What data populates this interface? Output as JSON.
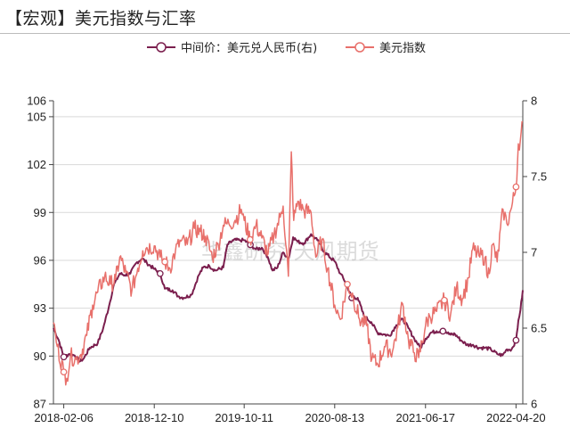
{
  "title": "【宏观】美元指数与汇率",
  "watermark": "华鑫研究 天风期货",
  "chart_data": {
    "type": "line",
    "title": "【宏观】美元指数与汇率",
    "xlabel": "",
    "x_tick_labels": [
      "2018-02-06",
      "2018-12-10",
      "2019-10-11",
      "2020-08-13",
      "2021-06-17",
      "2022-04-20"
    ],
    "x_range": [
      "2018-01-02",
      "2022-05-13"
    ],
    "y_left": {
      "ticks": [
        87,
        90,
        93,
        96,
        99,
        102,
        105,
        106
      ],
      "lim": [
        87,
        106
      ]
    },
    "y_right": {
      "ticks": [
        6,
        6.5,
        7,
        7.5,
        8
      ],
      "lim": [
        6,
        8
      ]
    },
    "legend_position": "top-center",
    "series": [
      {
        "name": "中间价：美元兑人民币(右)",
        "axis": "right",
        "color": "#7b1f4e",
        "marker": "open-circle",
        "points": [
          [
            "2018-01-02",
            6.5
          ],
          [
            "2018-01-20",
            6.42
          ],
          [
            "2018-02-06",
            6.31
          ],
          [
            "2018-02-25",
            6.33
          ],
          [
            "2018-03-15",
            6.32
          ],
          [
            "2018-04-01",
            6.28
          ],
          [
            "2018-04-15",
            6.3
          ],
          [
            "2018-05-05",
            6.37
          ],
          [
            "2018-06-01",
            6.4
          ],
          [
            "2018-06-20",
            6.5
          ],
          [
            "2018-07-10",
            6.65
          ],
          [
            "2018-07-25",
            6.78
          ],
          [
            "2018-08-15",
            6.86
          ],
          [
            "2018-09-01",
            6.85
          ],
          [
            "2018-09-20",
            6.86
          ],
          [
            "2018-10-10",
            6.93
          ],
          [
            "2018-10-30",
            6.96
          ],
          [
            "2018-11-15",
            6.93
          ],
          [
            "2018-12-10",
            6.89
          ],
          [
            "2018-12-30",
            6.86
          ],
          [
            "2019-01-15",
            6.76
          ],
          [
            "2019-02-10",
            6.75
          ],
          [
            "2019-03-01",
            6.71
          ],
          [
            "2019-03-20",
            6.7
          ],
          [
            "2019-04-15",
            6.72
          ],
          [
            "2019-05-10",
            6.85
          ],
          [
            "2019-05-25",
            6.9
          ],
          [
            "2019-06-15",
            6.91
          ],
          [
            "2019-07-05",
            6.88
          ],
          [
            "2019-08-01",
            6.9
          ],
          [
            "2019-08-15",
            7.05
          ],
          [
            "2019-09-05",
            7.08
          ],
          [
            "2019-09-25",
            7.08
          ],
          [
            "2019-10-11",
            7.08
          ],
          [
            "2019-11-01",
            7.05
          ],
          [
            "2019-11-20",
            7.02
          ],
          [
            "2019-12-10",
            7.03
          ],
          [
            "2019-12-30",
            6.97
          ],
          [
            "2020-01-15",
            6.88
          ],
          [
            "2020-02-01",
            6.9
          ],
          [
            "2020-02-20",
            7.0
          ],
          [
            "2020-03-10",
            6.96
          ],
          [
            "2020-03-25",
            7.1
          ],
          [
            "2020-04-10",
            7.07
          ],
          [
            "2020-05-01",
            7.06
          ],
          [
            "2020-05-25",
            7.12
          ],
          [
            "2020-06-15",
            7.08
          ],
          [
            "2020-07-10",
            7.0
          ],
          [
            "2020-08-13",
            6.94
          ],
          [
            "2020-09-01",
            6.86
          ],
          [
            "2020-09-20",
            6.8
          ],
          [
            "2020-10-10",
            6.7
          ],
          [
            "2020-10-30",
            6.7
          ],
          [
            "2020-11-20",
            6.58
          ],
          [
            "2020-12-15",
            6.54
          ],
          [
            "2021-01-05",
            6.47
          ],
          [
            "2021-01-25",
            6.46
          ],
          [
            "2021-02-15",
            6.45
          ],
          [
            "2021-03-10",
            6.52
          ],
          [
            "2021-04-01",
            6.56
          ],
          [
            "2021-04-20",
            6.5
          ],
          [
            "2021-05-10",
            6.43
          ],
          [
            "2021-05-31",
            6.37
          ],
          [
            "2021-06-17",
            6.43
          ],
          [
            "2021-07-05",
            6.47
          ],
          [
            "2021-07-25",
            6.48
          ],
          [
            "2021-08-15",
            6.48
          ],
          [
            "2021-09-05",
            6.46
          ],
          [
            "2021-09-25",
            6.46
          ],
          [
            "2021-10-15",
            6.42
          ],
          [
            "2021-11-05",
            6.39
          ],
          [
            "2021-11-25",
            6.39
          ],
          [
            "2021-12-15",
            6.37
          ],
          [
            "2022-01-05",
            6.37
          ],
          [
            "2022-01-25",
            6.36
          ],
          [
            "2022-02-15",
            6.33
          ],
          [
            "2022-03-05",
            6.32
          ],
          [
            "2022-03-20",
            6.36
          ],
          [
            "2022-04-05",
            6.36
          ],
          [
            "2022-04-20",
            6.42
          ],
          [
            "2022-04-28",
            6.55
          ],
          [
            "2022-05-05",
            6.62
          ],
          [
            "2022-05-13",
            6.75
          ]
        ]
      },
      {
        "name": "美元指数",
        "axis": "left",
        "color": "#e8706b",
        "marker": "open-circle",
        "points": [
          [
            "2018-01-02",
            92.1
          ],
          [
            "2018-01-15",
            90.6
          ],
          [
            "2018-02-06",
            89.0
          ],
          [
            "2018-02-16",
            88.6
          ],
          [
            "2018-03-01",
            90.0
          ],
          [
            "2018-03-20",
            89.8
          ],
          [
            "2018-04-05",
            90.1
          ],
          [
            "2018-04-25",
            91.3
          ],
          [
            "2018-05-15",
            93.2
          ],
          [
            "2018-06-01",
            94.0
          ],
          [
            "2018-06-25",
            95.0
          ],
          [
            "2018-07-15",
            94.5
          ],
          [
            "2018-08-01",
            94.8
          ],
          [
            "2018-08-15",
            96.2
          ],
          [
            "2018-09-05",
            95.2
          ],
          [
            "2018-09-25",
            94.1
          ],
          [
            "2018-10-15",
            95.5
          ],
          [
            "2018-11-01",
            96.6
          ],
          [
            "2018-11-15",
            96.8
          ],
          [
            "2018-12-10",
            96.9
          ],
          [
            "2018-12-30",
            96.2
          ],
          [
            "2019-01-15",
            95.9
          ],
          [
            "2019-02-01",
            95.5
          ],
          [
            "2019-02-20",
            96.6
          ],
          [
            "2019-03-10",
            97.2
          ],
          [
            "2019-04-01",
            97.0
          ],
          [
            "2019-04-25",
            98.0
          ],
          [
            "2019-05-15",
            97.8
          ],
          [
            "2019-06-01",
            97.5
          ],
          [
            "2019-06-25",
            96.2
          ],
          [
            "2019-07-15",
            97.0
          ],
          [
            "2019-08-01",
            98.2
          ],
          [
            "2019-08-20",
            98.3
          ],
          [
            "2019-09-10",
            98.5
          ],
          [
            "2019-10-01",
            99.2
          ],
          [
            "2019-10-11",
            98.5
          ],
          [
            "2019-10-31",
            97.3
          ],
          [
            "2019-11-20",
            98.2
          ],
          [
            "2019-12-10",
            97.4
          ],
          [
            "2019-12-31",
            96.4
          ],
          [
            "2020-01-20",
            97.6
          ],
          [
            "2020-02-10",
            98.7
          ],
          [
            "2020-02-20",
            99.4
          ],
          [
            "2020-03-09",
            95.0
          ],
          [
            "2020-03-19",
            102.8
          ],
          [
            "2020-03-27",
            98.5
          ],
          [
            "2020-04-10",
            99.7
          ],
          [
            "2020-05-01",
            99.1
          ],
          [
            "2020-05-25",
            99.0
          ],
          [
            "2020-06-10",
            96.2
          ],
          [
            "2020-07-01",
            97.3
          ],
          [
            "2020-07-20",
            95.5
          ],
          [
            "2020-08-13",
            93.2
          ],
          [
            "2020-09-01",
            92.3
          ],
          [
            "2020-09-25",
            94.5
          ],
          [
            "2020-10-15",
            93.7
          ],
          [
            "2020-11-05",
            92.3
          ],
          [
            "2020-11-30",
            91.9
          ],
          [
            "2020-12-17",
            89.8
          ],
          [
            "2021-01-06",
            89.5
          ],
          [
            "2021-01-29",
            90.6
          ],
          [
            "2021-02-25",
            90.3
          ],
          [
            "2021-03-15",
            91.8
          ],
          [
            "2021-03-31",
            93.3
          ],
          [
            "2021-04-20",
            91.0
          ],
          [
            "2021-05-10",
            90.2
          ],
          [
            "2021-05-25",
            89.9
          ],
          [
            "2021-06-17",
            91.9
          ],
          [
            "2021-07-01",
            92.5
          ],
          [
            "2021-07-25",
            92.8
          ],
          [
            "2021-08-20",
            93.5
          ],
          [
            "2021-09-10",
            92.6
          ],
          [
            "2021-09-30",
            94.3
          ],
          [
            "2021-10-20",
            93.6
          ],
          [
            "2021-11-10",
            94.9
          ],
          [
            "2021-11-24",
            96.7
          ],
          [
            "2021-12-15",
            96.3
          ],
          [
            "2022-01-05",
            96.2
          ],
          [
            "2022-01-14",
            94.9
          ],
          [
            "2022-01-31",
            97.0
          ],
          [
            "2022-02-15",
            95.9
          ],
          [
            "2022-03-07",
            99.2
          ],
          [
            "2022-03-20",
            98.3
          ],
          [
            "2022-04-05",
            99.3
          ],
          [
            "2022-04-20",
            100.6
          ],
          [
            "2022-04-28",
            103.3
          ],
          [
            "2022-05-05",
            103.6
          ],
          [
            "2022-05-13",
            104.7
          ]
        ]
      }
    ]
  }
}
